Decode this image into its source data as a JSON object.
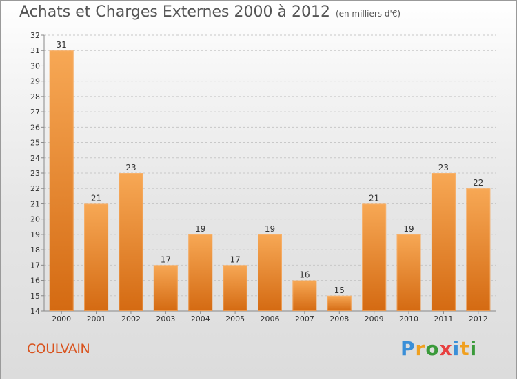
{
  "title": "Achats et Charges Externes 2000 à 2012",
  "unit": "(en milliers d'€)",
  "city": "COULVAIN",
  "logo": {
    "letters": [
      "P",
      "r",
      "o",
      "x",
      "i",
      "t",
      "i"
    ],
    "colors": [
      "#3a8fd8",
      "#f0a020",
      "#3a9a3a",
      "#e84040",
      "#3a8fd8",
      "#f0a020",
      "#3a9a3a"
    ]
  },
  "colors": {
    "bar_top": "#f7a855",
    "bar_bottom": "#d46a12",
    "city": "#d9531e"
  },
  "chart_data": {
    "type": "bar",
    "categories": [
      "2000",
      "2001",
      "2002",
      "2003",
      "2004",
      "2005",
      "2006",
      "2007",
      "2008",
      "2009",
      "2010",
      "2011",
      "2012"
    ],
    "values": [
      31,
      21,
      23,
      17,
      19,
      17,
      19,
      16,
      15,
      21,
      19,
      23,
      22
    ],
    "value_labels": [
      "31",
      "21",
      "23",
      "17",
      "19",
      "17",
      "19",
      "16",
      "15",
      "21",
      "19",
      "23",
      "22"
    ],
    "ylim": [
      14,
      32
    ],
    "yticks": [
      14,
      15,
      16,
      17,
      18,
      19,
      20,
      21,
      22,
      23,
      24,
      25,
      26,
      27,
      28,
      29,
      30,
      31,
      32
    ],
    "ytick_labels": [
      "14",
      "15",
      "16",
      "17",
      "18",
      "19",
      "20",
      "21",
      "22",
      "23",
      "24",
      "25",
      "26",
      "27",
      "28",
      "29",
      "30",
      "31",
      "32"
    ],
    "grid": true
  }
}
